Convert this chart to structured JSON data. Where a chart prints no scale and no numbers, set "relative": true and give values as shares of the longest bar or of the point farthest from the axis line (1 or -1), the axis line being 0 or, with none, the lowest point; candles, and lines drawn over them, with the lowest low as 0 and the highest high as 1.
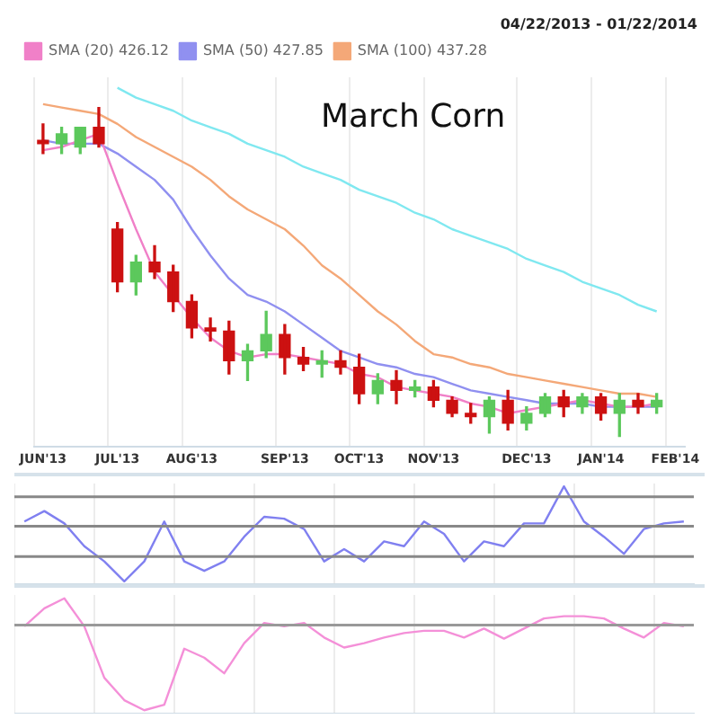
{
  "chart_data": [
    {
      "type": "candlestick",
      "title": "March Corn",
      "annotations": [
        "04/22/2013 - 01/22/2014"
      ],
      "relative": true,
      "legend": "top left",
      "grid": "x",
      "categories": [
        "JUN'13",
        null,
        null,
        null,
        "JUL'13",
        null,
        null,
        null,
        "AUG'13",
        null,
        null,
        null,
        null,
        "SEP'13",
        null,
        null,
        null,
        "OCT'13",
        null,
        null,
        null,
        "NOV'13",
        null,
        null,
        null,
        null,
        "DEC'13",
        null,
        null,
        null,
        "JAN'14",
        null,
        null,
        null,
        "FEB'14"
      ],
      "ohlc": [
        [
          0.9,
          0.95,
          0.86,
          0.89
        ],
        [
          0.89,
          0.94,
          0.86,
          0.92
        ],
        [
          0.88,
          0.94,
          0.86,
          0.94
        ],
        [
          0.94,
          1,
          0.88,
          0.89
        ],
        [
          0.63,
          0.65,
          0.44,
          0.47
        ],
        [
          0.47,
          0.55,
          0.43,
          0.53
        ],
        [
          0.53,
          0.58,
          0.48,
          0.5
        ],
        [
          0.5,
          0.52,
          0.38,
          0.41
        ],
        [
          0.41,
          0.43,
          0.3,
          0.33
        ],
        [
          0.33,
          0.36,
          0.29,
          0.32
        ],
        [
          0.32,
          0.35,
          0.19,
          0.23
        ],
        [
          0.23,
          0.28,
          0.17,
          0.26
        ],
        [
          0.26,
          0.38,
          0.24,
          0.31
        ],
        [
          0.31,
          0.34,
          0.19,
          0.24
        ],
        [
          0.24,
          0.27,
          0.2,
          0.22
        ],
        [
          0.22,
          0.26,
          0.18,
          0.23
        ],
        [
          0.23,
          0.26,
          0.19,
          0.21
        ],
        [
          0.21,
          0.25,
          0.1,
          0.13
        ],
        [
          0.13,
          0.19,
          0.1,
          0.17
        ],
        [
          0.17,
          0.2,
          0.1,
          0.14
        ],
        [
          0.14,
          0.17,
          0.12,
          0.15
        ],
        [
          0.15,
          0.17,
          0.09,
          0.11
        ],
        [
          0.11,
          0.12,
          0.06,
          0.07
        ],
        [
          0.07,
          0.1,
          0.04,
          0.06
        ],
        [
          0.06,
          0.12,
          0.01,
          0.11
        ],
        [
          0.11,
          0.14,
          0.02,
          0.04
        ],
        [
          0.04,
          0.09,
          0.02,
          0.07
        ],
        [
          0.07,
          0.13,
          0.06,
          0.12
        ],
        [
          0.12,
          0.14,
          0.06,
          0.09
        ],
        [
          0.09,
          0.13,
          0.07,
          0.12
        ],
        [
          0.12,
          0.13,
          0.05,
          0.07
        ],
        [
          0.07,
          0.13,
          0,
          0.11
        ],
        [
          0.11,
          0.13,
          0.07,
          0.09
        ],
        [
          0.09,
          0.13,
          0.07,
          0.11
        ],
        null
      ],
      "colors": [
        "#cc1111",
        "#5cc85c",
        "#5cc85c",
        "#cc1111",
        "#cc1111",
        "#5cc85c",
        "#cc1111",
        "#cc1111",
        "#cc1111",
        "#cc1111",
        "#cc1111",
        "#5cc85c",
        "#5cc85c",
        "#cc1111",
        "#cc1111",
        "#5cc85c",
        "#cc1111",
        "#cc1111",
        "#5cc85c",
        "#cc1111",
        "#5cc85c",
        "#cc1111",
        "#cc1111",
        "#cc1111",
        "#5cc85c",
        "#cc1111",
        "#5cc85c",
        "#5cc85c",
        "#cc1111",
        "#5cc85c",
        "#cc1111",
        "#5cc85c",
        "#cc1111",
        "#5cc85c",
        null
      ],
      "series": [
        {
          "type": "line",
          "name": "SMA (20) 426.12",
          "color": "#f080c8",
          "values": [
            0.87,
            0.88,
            0.9,
            0.92,
            0.77,
            0.63,
            0.5,
            0.43,
            0.36,
            0.3,
            0.26,
            0.24,
            0.25,
            0.25,
            0.24,
            0.23,
            0.22,
            0.19,
            0.18,
            0.15,
            0.14,
            0.13,
            0.12,
            0.1,
            0.09,
            0.07,
            0.08,
            0.09,
            0.1,
            0.11,
            0.1,
            0.09,
            0.09,
            0.1,
            null
          ]
        },
        {
          "type": "line",
          "name": "SMA (50) 427.85",
          "color": "#9090f0",
          "values": [
            0.9,
            0.89,
            0.89,
            0.89,
            0.86,
            0.82,
            0.78,
            0.72,
            0.63,
            0.55,
            0.48,
            0.43,
            0.41,
            0.38,
            0.34,
            0.3,
            0.26,
            0.24,
            0.22,
            0.21,
            0.19,
            0.18,
            0.16,
            0.14,
            0.13,
            0.12,
            0.11,
            0.1,
            0.1,
            0.1,
            0.09,
            0.09,
            0.09,
            0.09,
            null
          ]
        },
        {
          "type": "line",
          "name": "SMA (100) 437.28",
          "color": "#f4a878",
          "values": [
            1.01,
            1.0,
            0.99,
            0.98,
            0.95,
            0.91,
            0.88,
            0.85,
            0.82,
            0.78,
            0.73,
            0.69,
            0.66,
            0.63,
            0.58,
            0.52,
            0.48,
            0.43,
            0.38,
            0.34,
            0.29,
            0.25,
            0.24,
            0.22,
            0.21,
            0.19,
            0.18,
            0.17,
            0.16,
            0.15,
            0.14,
            0.13,
            0.13,
            0.12,
            null
          ]
        },
        {
          "type": "line",
          "color": "#80e8f0",
          "values": [
            null,
            null,
            null,
            null,
            1.06,
            1.03,
            1.01,
            0.99,
            0.96,
            0.94,
            0.92,
            0.89,
            0.87,
            0.85,
            0.82,
            0.8,
            0.78,
            0.75,
            0.73,
            0.71,
            0.68,
            0.66,
            0.63,
            0.61,
            0.59,
            0.57,
            0.54,
            0.52,
            0.5,
            0.47,
            0.45,
            0.43,
            0.4,
            0.38,
            null
          ]
        }
      ]
    },
    {
      "type": "line",
      "relative": true,
      "tick_labels": false,
      "grid": "x",
      "categories": [
        null,
        null,
        null,
        null,
        null,
        null,
        null,
        null,
        null,
        null,
        null,
        null,
        null,
        null,
        null,
        null,
        null,
        null,
        null,
        null,
        null,
        null,
        null,
        null,
        null,
        null,
        null,
        null,
        null,
        null,
        null,
        null,
        null,
        null
      ],
      "ref_lines": [
        {
          "axis": "y",
          "value": 0.89,
          "color": "#888888"
        },
        {
          "axis": "y",
          "value": 0.58,
          "color": "#888888"
        },
        {
          "axis": "y",
          "value": 0.26,
          "color": "#888888"
        }
      ],
      "series": [
        {
          "color": "#8080f0",
          "values": [
            0.63,
            0.74,
            0.61,
            0.37,
            0.21,
            0,
            0.21,
            0.63,
            0.21,
            0.11,
            0.21,
            0.47,
            0.68,
            0.66,
            0.55,
            0.21,
            0.34,
            0.21,
            0.42,
            0.37,
            0.63,
            0.5,
            0.21,
            0.42,
            0.37,
            0.61,
            0.61,
            1,
            0.63,
            0.47,
            0.29,
            0.55,
            0.61,
            0.63
          ]
        }
      ]
    },
    {
      "type": "line",
      "relative": true,
      "tick_labels": false,
      "grid": "x",
      "categories": [
        null,
        null,
        null,
        null,
        null,
        null,
        null,
        null,
        null,
        null,
        null,
        null,
        null,
        null,
        null,
        null,
        null,
        null,
        null,
        null,
        null,
        null,
        null,
        null,
        null,
        null,
        null,
        null,
        null,
        null,
        null,
        null,
        null,
        null
      ],
      "ref_lines": [
        {
          "axis": "y",
          "value": 0.76,
          "color": "#999999"
        }
      ],
      "series": [
        {
          "color": "#f490d8",
          "values": [
            0.75,
            0.91,
            1,
            0.75,
            0.29,
            0.09,
            0,
            0.05,
            0.55,
            0.47,
            0.33,
            0.6,
            0.78,
            0.75,
            0.78,
            0.65,
            0.56,
            0.6,
            0.65,
            0.69,
            0.71,
            0.71,
            0.65,
            0.73,
            0.64,
            0.73,
            0.82,
            0.84,
            0.84,
            0.82,
            0.73,
            0.65,
            0.78,
            0.75
          ]
        }
      ]
    }
  ]
}
